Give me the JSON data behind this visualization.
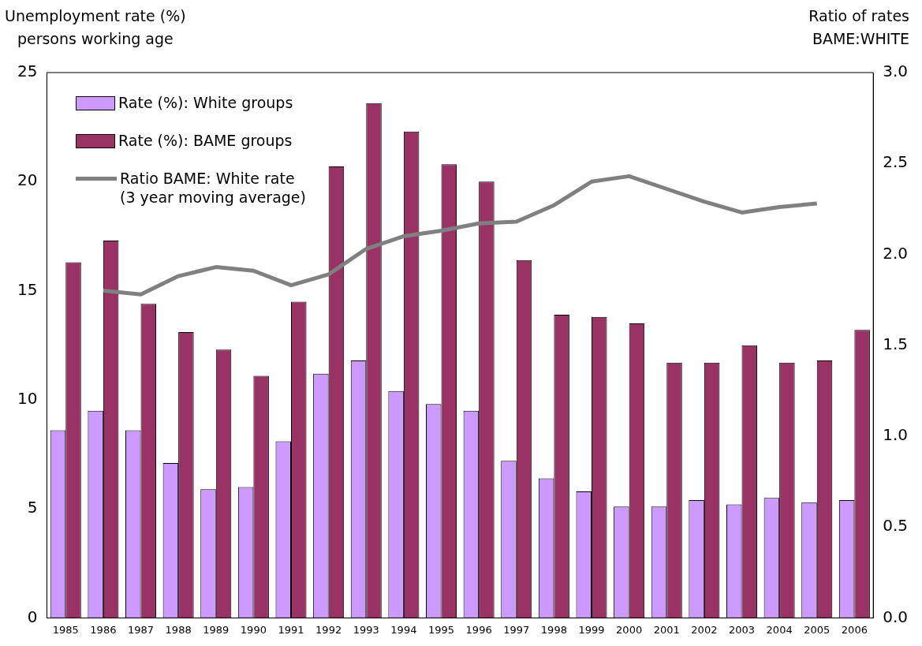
{
  "chart_data": {
    "type": "bar",
    "ylabel": "Unemployment rate (%)\npersons working age",
    "y2label": "Ratio of rates\nBAME:WHITE",
    "categories": [
      "1985",
      "1986",
      "1987",
      "1988",
      "1989",
      "1990",
      "1991",
      "1992",
      "1993",
      "1994",
      "1995",
      "1996",
      "1997",
      "1998",
      "1999",
      "2000",
      "2001",
      "2002",
      "2003",
      "2004",
      "2005",
      "2006"
    ],
    "series": [
      {
        "name": "Rate (%): White groups",
        "color": "#cc99ff",
        "values": [
          8.6,
          9.5,
          8.6,
          7.1,
          5.9,
          6.0,
          8.1,
          11.2,
          11.8,
          10.4,
          9.8,
          9.5,
          7.2,
          6.4,
          5.8,
          5.1,
          5.1,
          5.4,
          5.2,
          5.5,
          5.3,
          5.4
        ]
      },
      {
        "name": "Rate (%): BAME groups",
        "color": "#993366",
        "values": [
          16.3,
          17.3,
          14.4,
          13.1,
          12.3,
          11.1,
          14.5,
          20.7,
          23.6,
          22.3,
          20.8,
          20.0,
          16.4,
          13.9,
          13.8,
          13.5,
          11.7,
          11.7,
          12.5,
          11.7,
          11.8,
          13.2
        ]
      },
      {
        "name": "Ratio BAME: White rate\n(3 year moving average)",
        "type": "line",
        "axis": "y2",
        "color": "#808080",
        "values": [
          null,
          1.8,
          1.78,
          1.88,
          1.93,
          1.91,
          1.83,
          1.89,
          2.03,
          2.1,
          2.13,
          2.17,
          2.18,
          2.27,
          2.4,
          2.43,
          2.36,
          2.29,
          2.23,
          2.26,
          2.28,
          null
        ]
      }
    ],
    "ylim": [
      0,
      25
    ],
    "yticks": [
      0,
      5,
      10,
      15,
      20,
      25
    ],
    "y2lim": [
      0,
      3
    ],
    "y2ticks": [
      {
        "value": 0,
        "label": "0.0"
      },
      {
        "value": 0.5,
        "label": "0.5"
      },
      {
        "value": 1,
        "label": "1.0"
      },
      {
        "value": 1.5,
        "label": "1.5"
      },
      {
        "value": 2,
        "label": "2.0"
      },
      {
        "value": 2.5,
        "label": "2.5"
      },
      {
        "value": 3,
        "label": "3.0"
      }
    ],
    "grid": false,
    "legend": "top left",
    "marker": "none",
    "line_style": "solid"
  }
}
